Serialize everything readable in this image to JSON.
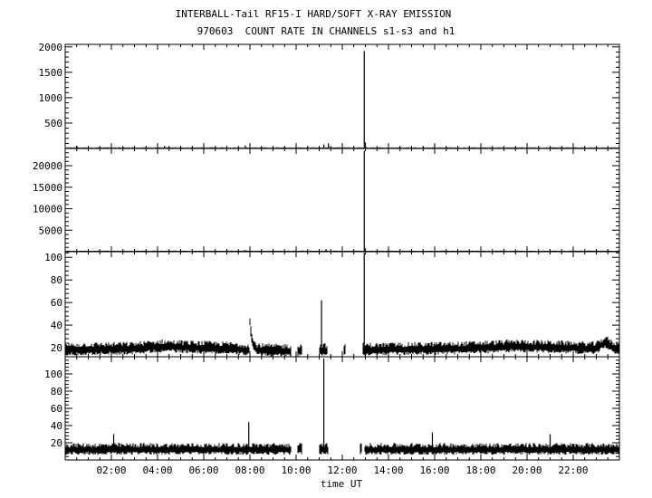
{
  "figure": {
    "title": "INTERBALL-Tail RF15-I HARD/SOFT X-RAY EMISSION",
    "subtitle": "970603  COUNT RATE IN CHANNELS s1-s3 and h1"
  },
  "chart_data": [
    {
      "type": "line",
      "panel": "1",
      "xlim": [
        0,
        24
      ],
      "ylim": [
        0,
        2050
      ],
      "yticks": [
        500,
        1000,
        1500,
        2000
      ],
      "ytick_labels": [
        "500",
        "1000",
        "1500",
        "2000"
      ],
      "baseline": 15,
      "noise": 6,
      "gaps": [],
      "x": [
        0.5,
        4.3,
        7.8,
        11.2,
        11.4,
        12.95,
        13.0,
        16.0,
        21.0
      ],
      "y": [
        55,
        50,
        60,
        80,
        100,
        1920,
        120,
        60,
        50
      ]
    },
    {
      "type": "line",
      "panel": "2",
      "xlim": [
        0,
        24
      ],
      "ylim": [
        0,
        24000
      ],
      "yticks": [
        5000,
        10000,
        15000,
        20000
      ],
      "ytick_labels": [
        "5000",
        "10000",
        "15000",
        "20000"
      ],
      "baseline": 150,
      "noise": 80,
      "gaps": [],
      "x": [
        7.8,
        11.3,
        12.95,
        13.0
      ],
      "y": [
        400,
        600,
        23500,
        800
      ]
    },
    {
      "type": "line",
      "panel": "3",
      "xlim": [
        0,
        24
      ],
      "ylim": [
        12,
        105
      ],
      "yticks": [
        20,
        40,
        60,
        80,
        100
      ],
      "ytick_labels": [
        "20",
        "40",
        "60",
        "80",
        "100"
      ],
      "baseline_points": [
        [
          0,
          18
        ],
        [
          3,
          19
        ],
        [
          4.2,
          21
        ],
        [
          5.5,
          20
        ],
        [
          7.0,
          19
        ],
        [
          9.0,
          17
        ],
        [
          13.0,
          18
        ],
        [
          17,
          19
        ],
        [
          19.5,
          21
        ],
        [
          21.5,
          20
        ],
        [
          23.0,
          19
        ],
        [
          23.4,
          25
        ],
        [
          23.7,
          20
        ],
        [
          24,
          19
        ]
      ],
      "noise": 5,
      "gaps": [
        [
          9.8,
          10.05
        ],
        [
          10.25,
          11.0
        ],
        [
          11.35,
          12.05
        ],
        [
          12.15,
          12.9
        ]
      ],
      "bump": {
        "x": 8.0,
        "peak": 44,
        "decay": 0.4
      },
      "x": [
        11.1,
        12.95
      ],
      "y": [
        62,
        104
      ]
    },
    {
      "type": "line",
      "panel": "4",
      "xlim": [
        0,
        24
      ],
      "ylim": [
        0,
        120
      ],
      "yticks": [
        20,
        40,
        60,
        80,
        100
      ],
      "ytick_labels": [
        "20",
        "40",
        "60",
        "80",
        "100"
      ],
      "xticks": [
        2,
        4,
        6,
        8,
        10,
        12,
        14,
        16,
        18,
        20,
        22
      ],
      "xtick_labels": [
        "02:00",
        "04:00",
        "06:00",
        "08:00",
        "10:00",
        "12:00",
        "14:00",
        "16:00",
        "18:00",
        "20:00",
        "22:00"
      ],
      "xlabel": "time UT",
      "baseline": 12,
      "noise": 6,
      "gaps": [
        [
          9.8,
          10.05
        ],
        [
          10.25,
          11.0
        ],
        [
          11.4,
          12.75
        ],
        [
          12.85,
          12.95
        ]
      ],
      "x": [
        2.1,
        7.95,
        11.2,
        15.9,
        21.0
      ],
      "y": [
        30,
        44,
        118,
        32,
        30
      ]
    }
  ]
}
